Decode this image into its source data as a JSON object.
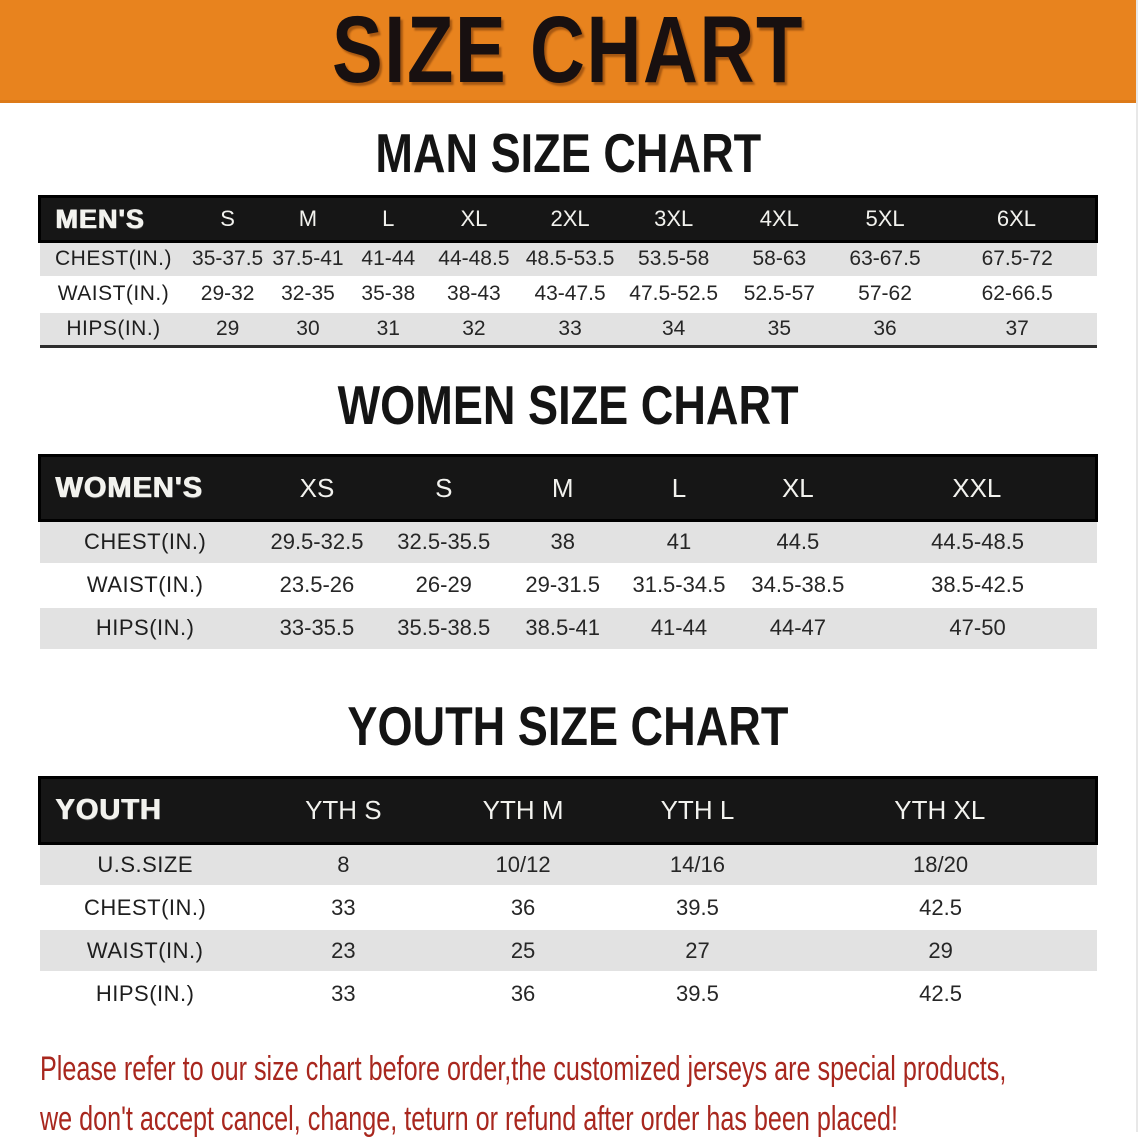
{
  "colors": {
    "banner_bg": "#e8831e",
    "band_bg": "#161616",
    "row_gray": "#e2e2e2",
    "disclaimer_red": "#a8271e"
  },
  "banner": {
    "title": "SIZE CHART"
  },
  "sections": [
    {
      "id": "men",
      "heading": "MAN SIZE CHART",
      "table": {
        "corner": "MEN'S",
        "columns": [
          "S",
          "M",
          "L",
          "XL",
          "2XL",
          "3XL",
          "4XL",
          "5XL",
          "6XL"
        ],
        "rows": [
          {
            "label": "CHEST(IN.)",
            "values": [
              "35-37.5",
              "37.5-41",
              "41-44",
              "44-48.5",
              "48.5-53.5",
              "53.5-58",
              "58-63",
              "63-67.5",
              "67.5-72"
            ]
          },
          {
            "label": "WAIST(IN.)",
            "values": [
              "29-32",
              "32-35",
              "35-38",
              "38-43",
              "43-47.5",
              "47.5-52.5",
              "52.5-57",
              "57-62",
              "62-66.5"
            ]
          },
          {
            "label": "HIPS(IN.)",
            "values": [
              "29",
              "30",
              "31",
              "32",
              "33",
              "34",
              "35",
              "36",
              "37"
            ]
          }
        ]
      }
    },
    {
      "id": "women",
      "heading": "WOMEN SIZE CHART",
      "table": {
        "corner": "WOMEN'S",
        "columns": [
          "XS",
          "S",
          "M",
          "L",
          "XL",
          "XXL"
        ],
        "rows": [
          {
            "label": "CHEST(IN.)",
            "values": [
              "29.5-32.5",
              "32.5-35.5",
              "38",
              "41",
              "44.5",
              "44.5-48.5"
            ]
          },
          {
            "label": "WAIST(IN.)",
            "values": [
              "23.5-26",
              "26-29",
              "29-31.5",
              "31.5-34.5",
              "34.5-38.5",
              "38.5-42.5"
            ]
          },
          {
            "label": "HIPS(IN.)",
            "values": [
              "33-35.5",
              "35.5-38.5",
              "38.5-41",
              "41-44",
              "44-47",
              "47-50"
            ]
          }
        ]
      }
    },
    {
      "id": "youth",
      "heading": "YOUTH SIZE CHART",
      "table": {
        "corner": "YOUTH",
        "columns": [
          "YTH S",
          "YTH M",
          "YTH L",
          "YTH XL"
        ],
        "rows": [
          {
            "label": "U.S.SIZE",
            "values": [
              "8",
              "10/12",
              "14/16",
              "18/20"
            ]
          },
          {
            "label": "CHEST(IN.)",
            "values": [
              "33",
              "36",
              "39.5",
              "42.5"
            ]
          },
          {
            "label": "WAIST(IN.)",
            "values": [
              "23",
              "25",
              "27",
              "29"
            ]
          },
          {
            "label": "HIPS(IN.)",
            "values": [
              "33",
              "36",
              "39.5",
              "42.5"
            ]
          }
        ]
      }
    }
  ],
  "disclaimer": {
    "line1": "Please refer to our size chart before order,the customized jerseys are special products,",
    "line2": "we don't accept cancel, change, teturn or refund after order has been placed!"
  }
}
